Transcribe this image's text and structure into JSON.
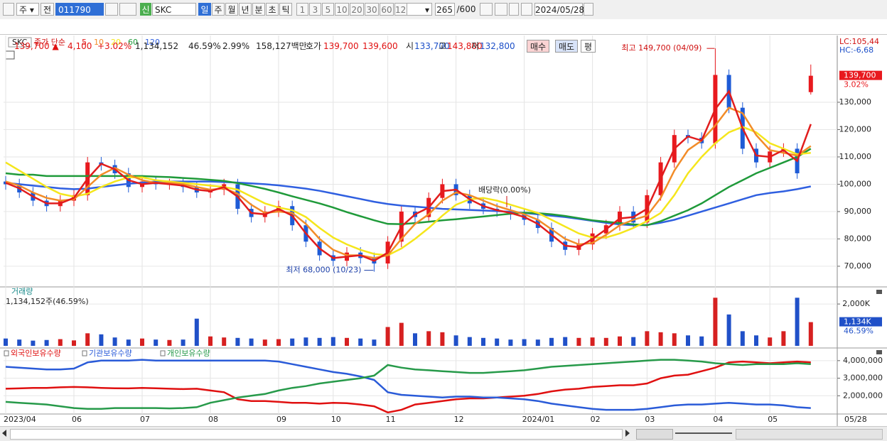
{
  "toolbar": {
    "period_type": "주",
    "prev": "전",
    "code": "011790",
    "new": "신",
    "name": "SKC",
    "periods": [
      "일",
      "주",
      "월",
      "년",
      "분",
      "초",
      "틱"
    ],
    "intervals": [
      "1",
      "3",
      "5",
      "10",
      "20",
      "30",
      "60",
      "120"
    ],
    "count": "265",
    "max": "/600",
    "date": "2024/05/28"
  },
  "info_bar": {
    "price": "139,700 ▲",
    "change": "4,100",
    "rate": "+3.02%",
    "volume": "1,134,152",
    "volume_ratio": "46.59%",
    "turnover": "2.99%",
    "amount": "158,127백만",
    "quote_label": "호가",
    "ask": "139,700",
    "bid": "139,600",
    "open_label": "시",
    "open": "133,700",
    "high_label": "고",
    "high": "143,800",
    "low_label": "저",
    "low": "132,800",
    "buy": "매수",
    "sell": "매도",
    "avg": "평"
  },
  "x_axis_end": "05/28",
  "chart_data": [
    {
      "type": "candlestick",
      "title": "SKC",
      "ma_label": "종가 단순",
      "categories": [
        "2023/04",
        null,
        null,
        null,
        null,
        "06",
        null,
        null,
        null,
        null,
        "07",
        null,
        null,
        null,
        null,
        "08",
        null,
        null,
        null,
        null,
        "09",
        null,
        null,
        null,
        "10",
        null,
        null,
        null,
        "11",
        null,
        null,
        null,
        null,
        "12",
        null,
        null,
        null,
        null,
        "2024/01",
        null,
        null,
        null,
        null,
        "02",
        null,
        null,
        null,
        "03",
        null,
        null,
        null,
        null,
        "04",
        null,
        null,
        null,
        "05",
        null,
        null,
        null
      ],
      "open": [
        101000,
        100000,
        97000,
        94000,
        92000,
        94000,
        96000,
        108000,
        107000,
        104000,
        99000,
        101000,
        100000,
        100000,
        99000,
        97000,
        98000,
        100000,
        91000,
        88000,
        90000,
        92000,
        85000,
        79000,
        74000,
        72000,
        75000,
        73000,
        71000,
        79000,
        90000,
        88000,
        95000,
        100000,
        96000,
        93000,
        91000,
        90000,
        89000,
        87000,
        84000,
        79000,
        76000,
        78000,
        82000,
        85000,
        90000,
        86000,
        96000,
        108000,
        118000,
        117000,
        115000,
        140000,
        128000,
        113000,
        108000,
        112000,
        113000,
        133700
      ],
      "high": [
        103000,
        102000,
        99000,
        96000,
        96000,
        98000,
        110000,
        110000,
        109000,
        106000,
        103000,
        103000,
        102000,
        102000,
        101000,
        100000,
        102000,
        102000,
        93000,
        92000,
        94000,
        94000,
        87000,
        81000,
        76000,
        77000,
        77000,
        75000,
        81000,
        92000,
        92000,
        97000,
        102000,
        102000,
        98000,
        95000,
        93000,
        92000,
        91000,
        89000,
        86000,
        81000,
        80000,
        84000,
        87000,
        92000,
        92000,
        98000,
        110000,
        120000,
        120000,
        119000,
        149700,
        142000,
        130000,
        115000,
        114000,
        115000,
        115000,
        143800
      ],
      "low": [
        98000,
        95000,
        92000,
        90000,
        90000,
        92000,
        94000,
        105000,
        102000,
        97000,
        97000,
        98000,
        98000,
        97000,
        95000,
        95000,
        96000,
        89000,
        86000,
        86000,
        88000,
        83000,
        77000,
        72000,
        70000,
        70000,
        71000,
        68000,
        69000,
        77000,
        86000,
        86000,
        93000,
        94000,
        91000,
        89000,
        88000,
        87000,
        85000,
        82000,
        77000,
        74000,
        74000,
        76000,
        80000,
        83000,
        84000,
        84000,
        94000,
        106000,
        115000,
        113000,
        113000,
        126000,
        111000,
        106000,
        106000,
        110000,
        102000,
        132800
      ],
      "close": [
        100000,
        97000,
        94000,
        92000,
        94000,
        96000,
        108000,
        107000,
        104000,
        99000,
        101000,
        100000,
        100000,
        99000,
        97000,
        98000,
        100000,
        91000,
        88000,
        90000,
        92000,
        85000,
        79000,
        74000,
        72000,
        75000,
        73000,
        71000,
        79000,
        90000,
        88000,
        95000,
        100000,
        96000,
        93000,
        91000,
        90000,
        89000,
        87000,
        84000,
        79000,
        76000,
        78000,
        82000,
        85000,
        90000,
        86000,
        96000,
        108000,
        118000,
        117000,
        115000,
        140000,
        128000,
        113000,
        108000,
        112000,
        113000,
        104000,
        139700
      ],
      "up_color": "#e8191e",
      "down_color": "#1e5bd6",
      "series": [
        {
          "name": "5",
          "color": "#e11d1d",
          "values": [
            100500,
            98500,
            95500,
            93000,
            93000,
            95000,
            102000,
            107500,
            105500,
            101500,
            100000,
            100500,
            100000,
            99500,
            98000,
            97500,
            99000,
            95500,
            89500,
            89000,
            91000,
            88500,
            82000,
            76500,
            73000,
            73500,
            74000,
            72000,
            75000,
            84500,
            89000,
            91500,
            97500,
            98000,
            94500,
            92000,
            90500,
            89500,
            88000,
            85500,
            81500,
            77500,
            77000,
            80000,
            83500,
            87500,
            88000,
            91000,
            102000,
            113000,
            117500,
            116000,
            127500,
            134000,
            120500,
            110500,
            110000,
            112500,
            108500,
            122000
          ]
        },
        {
          "name": "10",
          "color": "#f28c28",
          "values": [
            101000,
            99500,
            97000,
            95000,
            94000,
            94500,
            99000,
            103500,
            106000,
            103500,
            101500,
            100500,
            100500,
            100000,
            99000,
            98000,
            98500,
            96500,
            92500,
            89500,
            90000,
            89500,
            85500,
            80000,
            76000,
            74000,
            74000,
            73000,
            74000,
            80000,
            85500,
            89000,
            94000,
            97000,
            96000,
            94000,
            92000,
            90500,
            89000,
            87000,
            83500,
            80000,
            78000,
            78500,
            81500,
            85000,
            87000,
            88500,
            95000,
            105000,
            112500,
            116000,
            121500,
            128000,
            126000,
            118000,
            112500,
            111500,
            110500,
            114000
          ]
        },
        {
          "name": "20",
          "color": "#f5e61c",
          "values": [
            108000,
            105000,
            102000,
            99000,
            96500,
            95500,
            96500,
            99000,
            101000,
            102500,
            102500,
            101500,
            101000,
            100500,
            100000,
            99500,
            99000,
            98000,
            95500,
            93000,
            91500,
            90500,
            88000,
            84000,
            80500,
            78000,
            76000,
            74500,
            74000,
            76500,
            80000,
            84000,
            88500,
            92500,
            94500,
            95000,
            94000,
            92500,
            91000,
            89500,
            87000,
            84500,
            82000,
            80500,
            80500,
            82000,
            84000,
            86500,
            89500,
            96000,
            104000,
            110000,
            115000,
            119000,
            121000,
            119000,
            115000,
            113000,
            111000,
            111500
          ]
        },
        {
          "name": "60",
          "color": "#1f9a3a",
          "values": [
            104000,
            103500,
            103500,
            103000,
            103000,
            103000,
            103000,
            103000,
            103000,
            103000,
            103000,
            102800,
            102600,
            102300,
            102000,
            101600,
            101200,
            100400,
            99400,
            98300,
            97000,
            95600,
            94300,
            93000,
            91500,
            89800,
            88300,
            86800,
            85500,
            85400,
            85800,
            86300,
            86800,
            87200,
            87700,
            88200,
            88700,
            89200,
            89600,
            89400,
            89000,
            88400,
            87600,
            86800,
            86300,
            85800,
            85300,
            85000,
            86500,
            88500,
            90500,
            93000,
            96000,
            99000,
            101500,
            104000,
            106000,
            108000,
            110000,
            113000
          ]
        },
        {
          "name": "120",
          "color": "#2f5fe0",
          "values": [
            100500,
            100000,
            99500,
            99000,
            98500,
            98200,
            98400,
            99000,
            99600,
            100200,
            100600,
            101000,
            101000,
            101000,
            101000,
            101000,
            100800,
            100600,
            100300,
            100000,
            99600,
            99000,
            98400,
            97600,
            96600,
            95600,
            94600,
            93600,
            92800,
            92200,
            91800,
            91400,
            91000,
            90800,
            90600,
            90400,
            90200,
            89900,
            89500,
            89000,
            88500,
            88000,
            87300,
            86600,
            85900,
            85300,
            85000,
            85100,
            85900,
            87000,
            88500,
            90000,
            91500,
            93000,
            94500,
            96000,
            96800,
            97400,
            98200,
            99200
          ]
        }
      ],
      "ylim": [
        62700,
        153900
      ],
      "yticks": [
        {
          "value": 70000,
          "label": "70,000"
        },
        {
          "value": 80000,
          "label": "80,000"
        },
        {
          "value": 90000,
          "label": "90,000"
        },
        {
          "value": 100000,
          "label": "100,000"
        },
        {
          "value": 110000,
          "label": "110,000"
        },
        {
          "value": 120000,
          "label": "120,000"
        },
        {
          "value": 130000,
          "label": "130,000"
        }
      ],
      "grid": true,
      "side_labels": [
        "LC:105,44",
        "HC:-6,68"
      ],
      "last_label": "139,700",
      "last_change": "3.02%",
      "annotations": [
        "최고 149,700 (04/09)",
        "최저 68,000 (10/23)",
        "배당락(0.00%)"
      ]
    },
    {
      "type": "bar",
      "title": "거래량",
      "subtitle": "1,134,152주(46.59%)",
      "values": [
        350,
        300,
        250,
        280,
        320,
        260,
        600,
        550,
        400,
        300,
        350,
        300,
        280,
        300,
        1300,
        450,
        400,
        380,
        350,
        300,
        320,
        350,
        400,
        380,
        420,
        380,
        350,
        300,
        900,
        1100,
        600,
        700,
        650,
        500,
        420,
        380,
        350,
        300,
        320,
        300,
        380,
        420,
        380,
        400,
        380,
        450,
        420,
        700,
        650,
        600,
        500,
        450,
        2300,
        1500,
        700,
        500,
        400,
        700,
        2300,
        1134
      ],
      "up_color": "#d62020",
      "down_color": "#2050c8",
      "ylim": [
        0,
        2750
      ],
      "yticks": [
        {
          "value": 2000,
          "label": "2,000K"
        }
      ],
      "last_label": "1,134K",
      "last_pct": "46.59%"
    },
    {
      "type": "line",
      "series": [
        {
          "name": "외국인보유수량",
          "color": "#e01010",
          "values": [
            2400000,
            2420000,
            2450000,
            2450000,
            2480000,
            2500000,
            2480000,
            2450000,
            2430000,
            2420000,
            2450000,
            2430000,
            2400000,
            2380000,
            2400000,
            2300000,
            2200000,
            1800000,
            1700000,
            1700000,
            1650000,
            1600000,
            1600000,
            1550000,
            1600000,
            1580000,
            1500000,
            1400000,
            1050000,
            1200000,
            1500000,
            1600000,
            1700000,
            1800000,
            1850000,
            1850000,
            1900000,
            1950000,
            2000000,
            2100000,
            2250000,
            2350000,
            2400000,
            2500000,
            2550000,
            2600000,
            2600000,
            2700000,
            3000000,
            3150000,
            3200000,
            3400000,
            3600000,
            3900000,
            3950000,
            3900000,
            3850000,
            3900000,
            3950000,
            3900000
          ]
        },
        {
          "name": "기관보유수량",
          "color": "#2a5bd8",
          "values": [
            3650000,
            3600000,
            3550000,
            3500000,
            3500000,
            3550000,
            3900000,
            4000000,
            4000000,
            4000000,
            4050000,
            4000000,
            4000000,
            4000000,
            4000000,
            4000000,
            4000000,
            4000000,
            4000000,
            4000000,
            3950000,
            3800000,
            3650000,
            3500000,
            3350000,
            3250000,
            3100000,
            2900000,
            2200000,
            2050000,
            2000000,
            1950000,
            1900000,
            1950000,
            1950000,
            1900000,
            1900000,
            1850000,
            1800000,
            1700000,
            1550000,
            1450000,
            1350000,
            1250000,
            1200000,
            1200000,
            1200000,
            1250000,
            1350000,
            1450000,
            1500000,
            1500000,
            1550000,
            1600000,
            1550000,
            1500000,
            1500000,
            1450000,
            1350000,
            1300000
          ]
        },
        {
          "name": "개인보유수량",
          "color": "#279a4a",
          "values": [
            1650000,
            1600000,
            1550000,
            1500000,
            1400000,
            1300000,
            1250000,
            1250000,
            1300000,
            1300000,
            1300000,
            1300000,
            1280000,
            1300000,
            1350000,
            1600000,
            1750000,
            1900000,
            2000000,
            2100000,
            2300000,
            2450000,
            2550000,
            2700000,
            2800000,
            2900000,
            3000000,
            3150000,
            3750000,
            3600000,
            3500000,
            3450000,
            3400000,
            3350000,
            3300000,
            3300000,
            3350000,
            3400000,
            3450000,
            3550000,
            3650000,
            3700000,
            3750000,
            3800000,
            3850000,
            3900000,
            3950000,
            4000000,
            4050000,
            4050000,
            4000000,
            3950000,
            3850000,
            3800000,
            3750000,
            3800000,
            3800000,
            3800000,
            3850000,
            3800000
          ]
        }
      ],
      "ylim": [
        960000,
        4600000
      ],
      "yticks": [
        {
          "value": 2000000,
          "label": "2,000,000"
        },
        {
          "value": 3000000,
          "label": "3,000,000"
        },
        {
          "value": 4000000,
          "label": "4,000,000"
        }
      ]
    }
  ]
}
